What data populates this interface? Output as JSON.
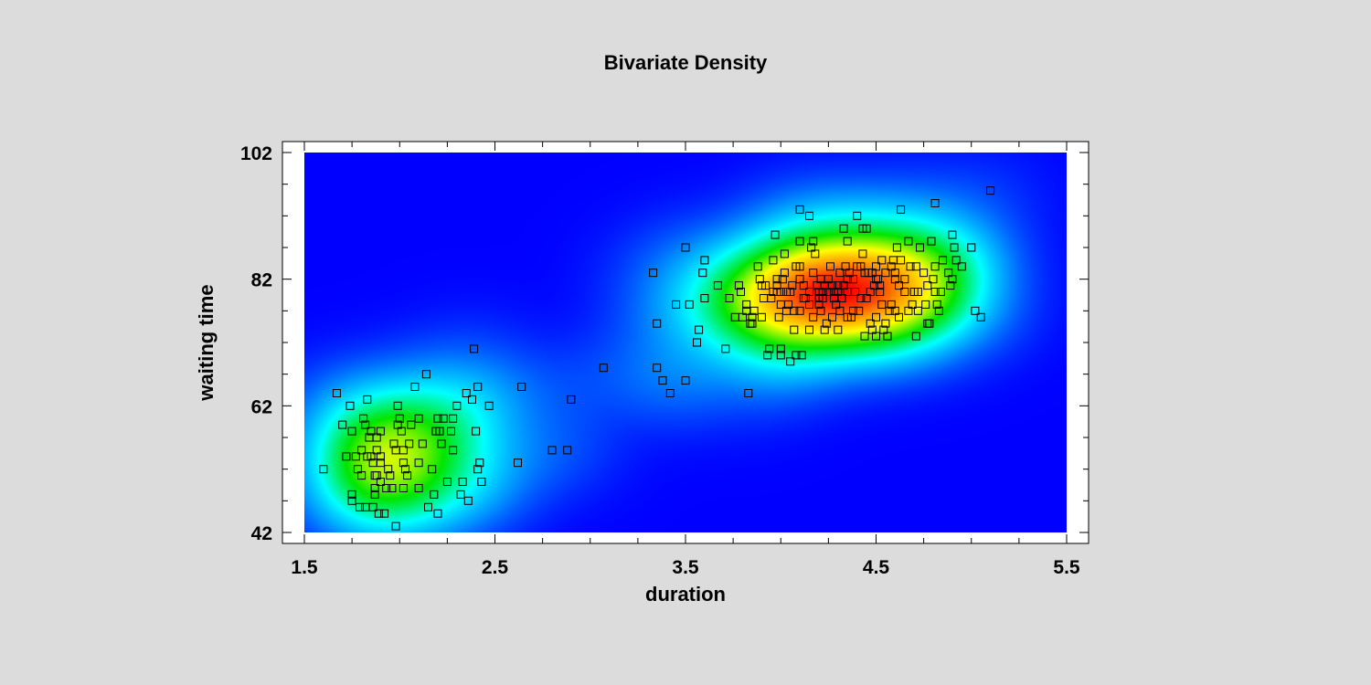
{
  "chart_data": {
    "type": "heatmap",
    "title": "Bivariate Density",
    "xlabel": "duration",
    "ylabel": "waiting time",
    "xlim": [
      1.5,
      5.5
    ],
    "ylim": [
      42,
      102
    ],
    "x_ticks": [
      1.5,
      2.5,
      3.5,
      4.5,
      5.5
    ],
    "x_tick_labels": [
      "1.5",
      "2.5",
      "3.5",
      "4.5",
      "5.5"
    ],
    "y_ticks": [
      42,
      62,
      82,
      102
    ],
    "y_tick_labels": [
      "42",
      "62",
      "82",
      "102"
    ],
    "grid": false,
    "legend": "none",
    "colors": {
      "background": "#dcdcdc",
      "density_low": "#0000ff",
      "density_high": "#ff0000",
      "marker": "#000000"
    },
    "density_modes": [
      {
        "x": 2.05,
        "y": 55,
        "peak": 0.8
      },
      {
        "x": 4.3,
        "y": 80.5,
        "peak": 1.0
      }
    ],
    "points": [
      [
        1.6,
        52
      ],
      [
        1.67,
        64
      ],
      [
        1.7,
        59
      ],
      [
        1.72,
        54
      ],
      [
        1.74,
        62
      ],
      [
        1.75,
        58
      ],
      [
        1.75,
        48
      ],
      [
        1.75,
        47
      ],
      [
        1.77,
        54
      ],
      [
        1.78,
        52
      ],
      [
        1.79,
        46
      ],
      [
        1.8,
        55
      ],
      [
        1.8,
        51
      ],
      [
        1.81,
        60
      ],
      [
        1.82,
        59
      ],
      [
        1.82,
        46
      ],
      [
        1.83,
        63
      ],
      [
        1.83,
        54
      ],
      [
        1.84,
        57
      ],
      [
        1.85,
        58
      ],
      [
        1.85,
        54
      ],
      [
        1.86,
        53
      ],
      [
        1.86,
        46
      ],
      [
        1.87,
        51
      ],
      [
        1.87,
        49
      ],
      [
        1.87,
        48
      ],
      [
        1.88,
        57
      ],
      [
        1.88,
        55
      ],
      [
        1.88,
        51
      ],
      [
        1.89,
        45
      ],
      [
        1.9,
        58
      ],
      [
        1.9,
        54
      ],
      [
        1.9,
        53
      ],
      [
        1.9,
        50
      ],
      [
        1.92,
        45
      ],
      [
        1.93,
        49
      ],
      [
        1.94,
        52
      ],
      [
        1.95,
        51
      ],
      [
        1.96,
        49
      ],
      [
        1.97,
        56
      ],
      [
        1.98,
        55
      ],
      [
        1.98,
        43
      ],
      [
        1.99,
        62
      ],
      [
        1.99,
        59
      ],
      [
        2.0,
        60
      ],
      [
        2.01,
        58
      ],
      [
        2.02,
        55
      ],
      [
        2.02,
        53
      ],
      [
        2.02,
        49
      ],
      [
        2.03,
        52
      ],
      [
        2.04,
        51
      ],
      [
        2.05,
        56
      ],
      [
        2.06,
        59
      ],
      [
        2.08,
        65
      ],
      [
        2.1,
        60
      ],
      [
        2.1,
        53
      ],
      [
        2.1,
        49
      ],
      [
        2.12,
        56
      ],
      [
        2.14,
        67
      ],
      [
        2.15,
        46
      ],
      [
        2.17,
        52
      ],
      [
        2.18,
        48
      ],
      [
        2.19,
        58
      ],
      [
        2.2,
        60
      ],
      [
        2.2,
        45
      ],
      [
        2.21,
        58
      ],
      [
        2.22,
        56
      ],
      [
        2.23,
        60
      ],
      [
        2.25,
        50
      ],
      [
        2.27,
        58
      ],
      [
        2.28,
        55
      ],
      [
        2.28,
        60
      ],
      [
        2.3,
        62
      ],
      [
        2.32,
        48
      ],
      [
        2.33,
        50
      ],
      [
        2.35,
        64
      ],
      [
        2.36,
        47
      ],
      [
        2.38,
        63
      ],
      [
        2.39,
        71
      ],
      [
        2.4,
        58
      ],
      [
        2.41,
        65
      ],
      [
        2.41,
        52
      ],
      [
        2.42,
        53
      ],
      [
        2.43,
        50
      ],
      [
        2.47,
        62
      ],
      [
        2.62,
        53
      ],
      [
        2.64,
        65
      ],
      [
        2.8,
        55
      ],
      [
        2.88,
        55
      ],
      [
        2.9,
        63
      ],
      [
        3.07,
        68
      ],
      [
        3.33,
        83
      ],
      [
        3.35,
        68
      ],
      [
        3.35,
        75
      ],
      [
        3.38,
        66
      ],
      [
        3.42,
        64
      ],
      [
        3.45,
        78
      ],
      [
        3.5,
        66
      ],
      [
        3.5,
        87
      ],
      [
        3.52,
        78
      ],
      [
        3.56,
        72
      ],
      [
        3.57,
        74
      ],
      [
        3.59,
        83
      ],
      [
        3.6,
        85
      ],
      [
        3.6,
        79
      ],
      [
        3.67,
        81
      ],
      [
        3.71,
        71
      ],
      [
        3.73,
        79
      ],
      [
        3.76,
        76
      ],
      [
        3.78,
        81
      ],
      [
        3.79,
        80
      ],
      [
        3.8,
        76
      ],
      [
        3.82,
        77
      ],
      [
        3.82,
        78
      ],
      [
        3.83,
        64
      ],
      [
        3.84,
        75
      ],
      [
        3.85,
        75
      ],
      [
        3.85,
        76
      ],
      [
        3.86,
        77
      ],
      [
        3.88,
        84
      ],
      [
        3.89,
        82
      ],
      [
        3.9,
        76
      ],
      [
        3.9,
        81
      ],
      [
        3.91,
        79
      ],
      [
        3.92,
        81
      ],
      [
        3.93,
        70
      ],
      [
        3.94,
        71
      ],
      [
        3.95,
        79
      ],
      [
        3.96,
        85
      ],
      [
        3.96,
        80
      ],
      [
        3.97,
        89
      ],
      [
        3.98,
        81
      ],
      [
        3.98,
        82
      ],
      [
        3.98,
        80
      ],
      [
        3.99,
        76
      ],
      [
        4.0,
        78
      ],
      [
        4.0,
        80
      ],
      [
        4.0,
        70
      ],
      [
        4.0,
        71
      ],
      [
        4.01,
        82
      ],
      [
        4.02,
        83
      ],
      [
        4.02,
        86
      ],
      [
        4.03,
        77
      ],
      [
        4.03,
        80
      ],
      [
        4.04,
        78
      ],
      [
        4.05,
        80
      ],
      [
        4.05,
        69
      ],
      [
        4.06,
        81
      ],
      [
        4.07,
        74
      ],
      [
        4.07,
        77
      ],
      [
        4.08,
        84
      ],
      [
        4.08,
        70
      ],
      [
        4.1,
        82
      ],
      [
        4.1,
        93
      ],
      [
        4.1,
        88
      ],
      [
        4.1,
        84
      ],
      [
        4.1,
        77
      ],
      [
        4.11,
        70
      ],
      [
        4.12,
        81
      ],
      [
        4.12,
        79
      ],
      [
        4.13,
        79
      ],
      [
        4.15,
        92
      ],
      [
        4.15,
        80
      ],
      [
        4.15,
        78
      ],
      [
        4.15,
        74
      ],
      [
        4.16,
        87
      ],
      [
        4.17,
        88
      ],
      [
        4.17,
        83
      ],
      [
        4.17,
        76
      ],
      [
        4.18,
        86
      ],
      [
        4.19,
        81
      ],
      [
        4.2,
        79
      ],
      [
        4.2,
        78
      ],
      [
        4.2,
        80
      ],
      [
        4.21,
        77
      ],
      [
        4.21,
        82
      ],
      [
        4.22,
        80
      ],
      [
        4.22,
        79
      ],
      [
        4.23,
        81
      ],
      [
        4.23,
        74
      ],
      [
        4.24,
        75
      ],
      [
        4.25,
        82
      ],
      [
        4.25,
        80
      ],
      [
        4.26,
        84
      ],
      [
        4.27,
        81
      ],
      [
        4.27,
        76
      ],
      [
        4.28,
        80
      ],
      [
        4.28,
        79
      ],
      [
        4.29,
        78
      ],
      [
        4.3,
        81
      ],
      [
        4.3,
        80
      ],
      [
        4.3,
        74
      ],
      [
        4.31,
        83
      ],
      [
        4.31,
        77
      ],
      [
        4.32,
        79
      ],
      [
        4.33,
        81
      ],
      [
        4.33,
        90
      ],
      [
        4.34,
        84
      ],
      [
        4.35,
        82
      ],
      [
        4.35,
        80
      ],
      [
        4.35,
        76
      ],
      [
        4.35,
        88
      ],
      [
        4.36,
        83
      ],
      [
        4.37,
        76
      ],
      [
        4.38,
        77
      ],
      [
        4.38,
        82
      ],
      [
        4.39,
        80
      ],
      [
        4.4,
        92
      ],
      [
        4.4,
        84
      ],
      [
        4.41,
        77
      ],
      [
        4.42,
        84
      ],
      [
        4.42,
        79
      ],
      [
        4.43,
        90
      ],
      [
        4.43,
        86
      ],
      [
        4.44,
        83
      ],
      [
        4.44,
        73
      ],
      [
        4.45,
        79
      ],
      [
        4.45,
        90
      ],
      [
        4.46,
        83
      ],
      [
        4.47,
        80
      ],
      [
        4.47,
        75
      ],
      [
        4.48,
        74
      ],
      [
        4.48,
        83
      ],
      [
        4.49,
        81
      ],
      [
        4.5,
        76
      ],
      [
        4.5,
        82
      ],
      [
        4.5,
        84
      ],
      [
        4.5,
        73
      ],
      [
        4.51,
        82
      ],
      [
        4.52,
        81
      ],
      [
        4.52,
        80
      ],
      [
        4.53,
        78
      ],
      [
        4.53,
        85
      ],
      [
        4.54,
        74
      ],
      [
        4.55,
        75
      ],
      [
        4.55,
        83
      ],
      [
        4.56,
        73
      ],
      [
        4.57,
        77
      ],
      [
        4.58,
        78
      ],
      [
        4.58,
        84
      ],
      [
        4.59,
        85
      ],
      [
        4.6,
        77
      ],
      [
        4.6,
        82
      ],
      [
        4.6,
        83
      ],
      [
        4.61,
        87
      ],
      [
        4.62,
        81
      ],
      [
        4.62,
        76
      ],
      [
        4.63,
        85
      ],
      [
        4.63,
        93
      ],
      [
        4.65,
        82
      ],
      [
        4.65,
        80
      ],
      [
        4.67,
        77
      ],
      [
        4.67,
        88
      ],
      [
        4.68,
        84
      ],
      [
        4.69,
        78
      ],
      [
        4.7,
        80
      ],
      [
        4.71,
        84
      ],
      [
        4.71,
        73
      ],
      [
        4.72,
        77
      ],
      [
        4.72,
        80
      ],
      [
        4.73,
        87
      ],
      [
        4.75,
        83
      ],
      [
        4.76,
        78
      ],
      [
        4.77,
        75
      ],
      [
        4.77,
        81
      ],
      [
        4.78,
        75
      ],
      [
        4.79,
        88
      ],
      [
        4.8,
        82
      ],
      [
        4.81,
        94
      ],
      [
        4.81,
        80
      ],
      [
        4.81,
        84
      ],
      [
        4.82,
        78
      ],
      [
        4.83,
        77
      ],
      [
        4.84,
        80
      ],
      [
        4.85,
        85
      ],
      [
        4.88,
        83
      ],
      [
        4.89,
        81
      ],
      [
        4.9,
        82
      ],
      [
        4.9,
        89
      ],
      [
        4.91,
        87
      ],
      [
        4.92,
        85
      ],
      [
        4.95,
        84
      ],
      [
        5.0,
        87
      ],
      [
        5.02,
        77
      ],
      [
        5.05,
        76
      ],
      [
        5.1,
        96
      ]
    ]
  }
}
